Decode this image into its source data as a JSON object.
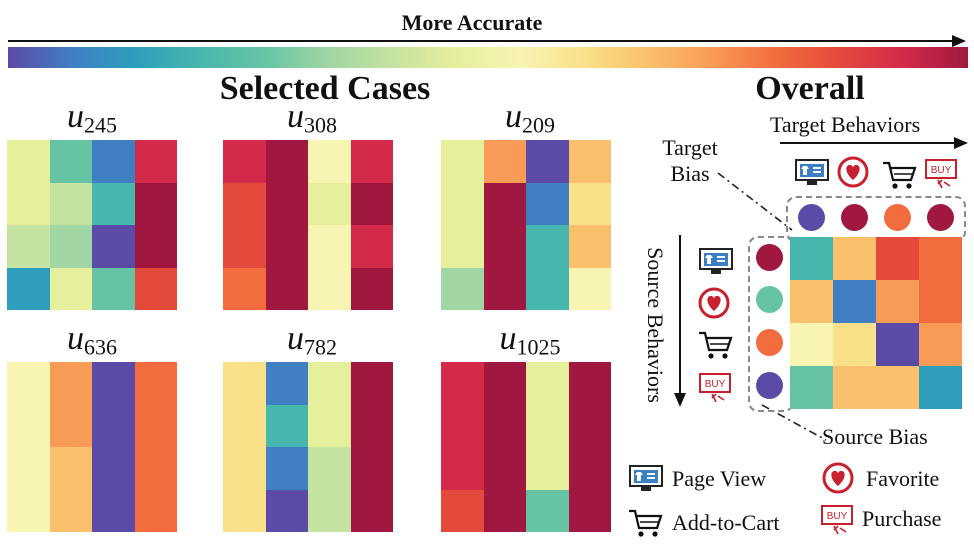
{
  "title": "More Accurate",
  "sections": {
    "selected": "Selected Cases",
    "overall": "Overall"
  },
  "palette": [
    "#5b4ba6",
    "#3f7fc2",
    "#2d9fbd",
    "#47b7ad",
    "#66c4a4",
    "#9fd6a3",
    "#c4e3a0",
    "#e6ef9c",
    "#f8f4b2",
    "#fbe08a",
    "#fbc06b",
    "#f89b56",
    "#f26c3d",
    "#e44a3c",
    "#d22a48",
    "#a0183f"
  ],
  "chart_data": [
    {
      "type": "heatmap",
      "title_var": "u",
      "title_sub": "245",
      "levels": [
        [
          7,
          4,
          1,
          14
        ],
        [
          7,
          6,
          3,
          15
        ],
        [
          6,
          5,
          0,
          15
        ],
        [
          2,
          7,
          4,
          13
        ]
      ]
    },
    {
      "type": "heatmap",
      "title_var": "u",
      "title_sub": "308",
      "levels": [
        [
          14,
          15,
          8,
          14
        ],
        [
          13,
          15,
          7,
          15
        ],
        [
          13,
          15,
          8,
          14
        ],
        [
          12,
          15,
          8,
          15
        ]
      ]
    },
    {
      "type": "heatmap",
      "title_var": "u",
      "title_sub": "209",
      "levels": [
        [
          7,
          11,
          0,
          10
        ],
        [
          7,
          15,
          1,
          9
        ],
        [
          7,
          15,
          3,
          10
        ],
        [
          5,
          15,
          3,
          8
        ]
      ]
    },
    {
      "type": "heatmap",
      "title_var": "u",
      "title_sub": "636",
      "levels": [
        [
          8,
          11,
          0,
          12
        ],
        [
          8,
          11,
          0,
          12
        ],
        [
          8,
          10,
          0,
          12
        ],
        [
          8,
          10,
          0,
          12
        ]
      ]
    },
    {
      "type": "heatmap",
      "title_var": "u",
      "title_sub": "782",
      "levels": [
        [
          9,
          1,
          7,
          15
        ],
        [
          9,
          3,
          7,
          15
        ],
        [
          9,
          1,
          6,
          15
        ],
        [
          9,
          0,
          6,
          15
        ]
      ]
    },
    {
      "type": "heatmap",
      "title_var": "u",
      "title_sub": "1025",
      "levels": [
        [
          14,
          15,
          7,
          15
        ],
        [
          14,
          15,
          7,
          15
        ],
        [
          14,
          15,
          7,
          15
        ],
        [
          13,
          15,
          4,
          15
        ]
      ]
    },
    {
      "type": "heatmap",
      "title": "Overall",
      "levels": [
        [
          3,
          10,
          13,
          12
        ],
        [
          10,
          1,
          11,
          12
        ],
        [
          8,
          9,
          0,
          11
        ],
        [
          4,
          10,
          10,
          2
        ]
      ],
      "target_bias_levels": [
        0,
        15,
        12,
        15
      ],
      "source_bias_levels": [
        15,
        4,
        12,
        0
      ]
    }
  ],
  "axis_labels": {
    "target_behaviors": "Target Behaviors",
    "target_bias": "Target Bias",
    "source_behaviors": "Source Behaviors",
    "source_bias": "Source Bias"
  },
  "behaviors": [
    "page-view",
    "favorite",
    "add-to-cart",
    "purchase"
  ],
  "legend": {
    "page_view": "Page View",
    "favorite": "Favorite",
    "add_to_cart": "Add-to-Cart",
    "purchase": "Purchase"
  },
  "buy_text": "BUY"
}
